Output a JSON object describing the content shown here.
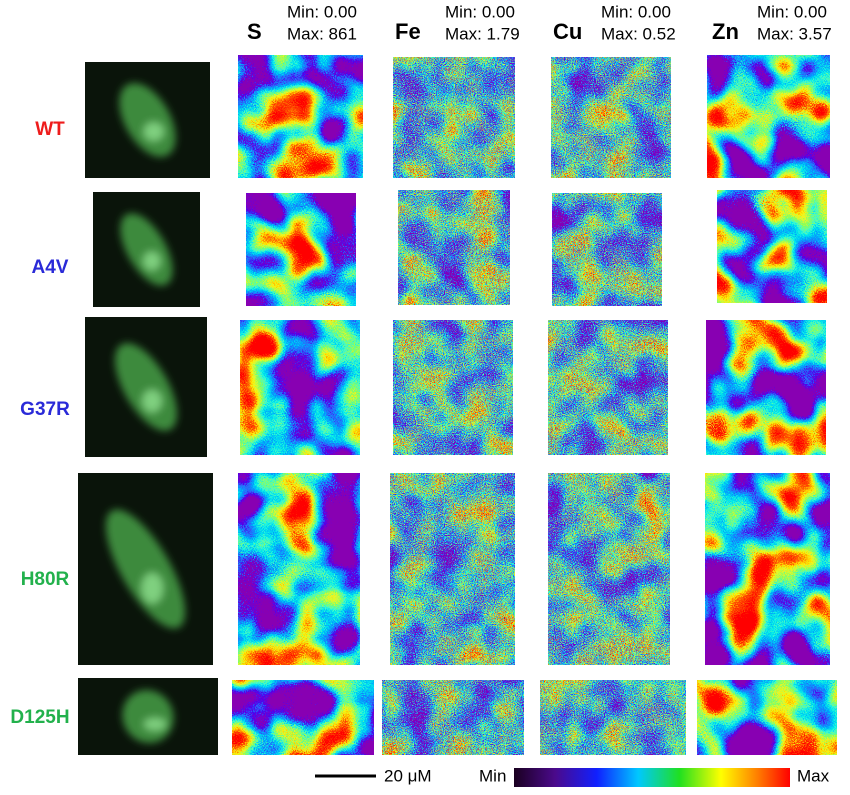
{
  "columns": [
    {
      "element": "S",
      "min": "Min: 0.00",
      "max": "Max: 861"
    },
    {
      "element": "Fe",
      "min": "Min: 0.00",
      "max": "Max: 1.79"
    },
    {
      "element": "Cu",
      "min": "Min: 0.00",
      "max": "Max: 0.52"
    },
    {
      "element": "Zn",
      "min": "Min: 0.00",
      "max": "Max: 3.57"
    }
  ],
  "rows": [
    {
      "label": "WT",
      "color": "#ee1c1c"
    },
    {
      "label": "A4V",
      "color": "#2a2ad8"
    },
    {
      "label": "G37R",
      "color": "#2a2ad8"
    },
    {
      "label": "H80R",
      "color": "#22b14c"
    },
    {
      "label": "D125H",
      "color": "#22b14c"
    }
  ],
  "scale_bar": "20 μM",
  "colorbar": {
    "min": "Min",
    "max": "Max"
  }
}
